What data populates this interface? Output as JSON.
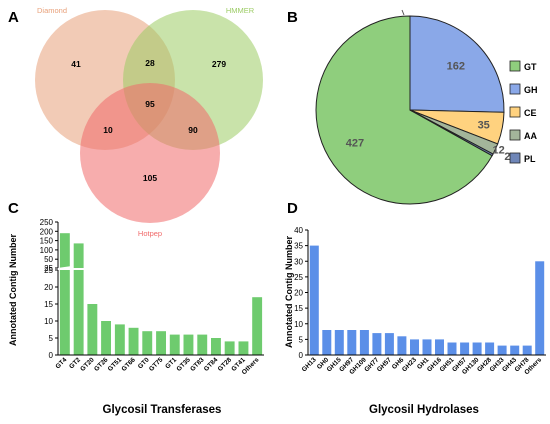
{
  "panels": {
    "a": "A",
    "b": "B",
    "c": "C",
    "d": "D"
  },
  "chart_data": [
    {
      "type": "venn",
      "sets": [
        {
          "name": "Diamond",
          "color": "#e8a07a"
        },
        {
          "name": "HMMER",
          "color": "#9ccc65"
        },
        {
          "name": "Hotpep",
          "color": "#f06a6a"
        }
      ],
      "regions": {
        "diamond_only": 41,
        "hmmer_only": 279,
        "hotpep_only": 105,
        "diamond_hmmer": 28,
        "diamond_hotpep": 10,
        "hmmer_hotpep": 90,
        "all": 95
      }
    },
    {
      "type": "pie",
      "slices": [
        {
          "label": "GT",
          "value": 427,
          "color": "#8fce7d"
        },
        {
          "label": "GH",
          "value": 162,
          "color": "#8aa8e8"
        },
        {
          "label": "CE",
          "value": 35,
          "color": "#ffd27f"
        },
        {
          "label": "AA",
          "value": 12,
          "color": "#a3b59a"
        },
        {
          "label": "PL",
          "value": 2,
          "color": "#6f86b8"
        }
      ],
      "legend": "right"
    },
    {
      "type": "bar",
      "color": "#6ecb6e",
      "categories": [
        "GT4",
        "GT2",
        "GT20",
        "GT26",
        "GT51",
        "GT66",
        "GT0",
        "GT75",
        "GT1",
        "GT35",
        "GT83",
        "GT84",
        "GT28",
        "GT41",
        "Others"
      ],
      "values": [
        190,
        135,
        15,
        10,
        9,
        8,
        7,
        7,
        6,
        6,
        6,
        5,
        4,
        4,
        17
      ],
      "xlabel": "Glycosil Transferases",
      "ylabel": "Annotated Contig Number",
      "y_broken": true,
      "lower_ticks": [
        "0",
        "5",
        "10",
        "15",
        "20",
        "25"
      ],
      "upper_ticks": [
        "25",
        "50",
        "100",
        "150",
        "200",
        "250"
      ]
    },
    {
      "type": "bar",
      "color": "#5b8fe8",
      "categories": [
        "GH13",
        "GH0",
        "GH15",
        "GH97",
        "GH109",
        "GH77",
        "GH57",
        "GH6",
        "GH23",
        "GH1",
        "GH16",
        "GH51",
        "GH57",
        "GH130",
        "GH28",
        "GH33",
        "GH43",
        "GH78",
        "Others"
      ],
      "values": [
        35,
        8,
        8,
        8,
        8,
        7,
        7,
        6,
        5,
        5,
        5,
        4,
        4,
        4,
        4,
        3,
        3,
        3,
        30
      ],
      "xlabel": "Glycosil Hydrolases",
      "ylabel": "Annotated Contig Number",
      "ylim": [
        0,
        40
      ],
      "yticks": [
        "0",
        "5",
        "10",
        "15",
        "20",
        "25",
        "30",
        "35",
        "40"
      ]
    }
  ]
}
